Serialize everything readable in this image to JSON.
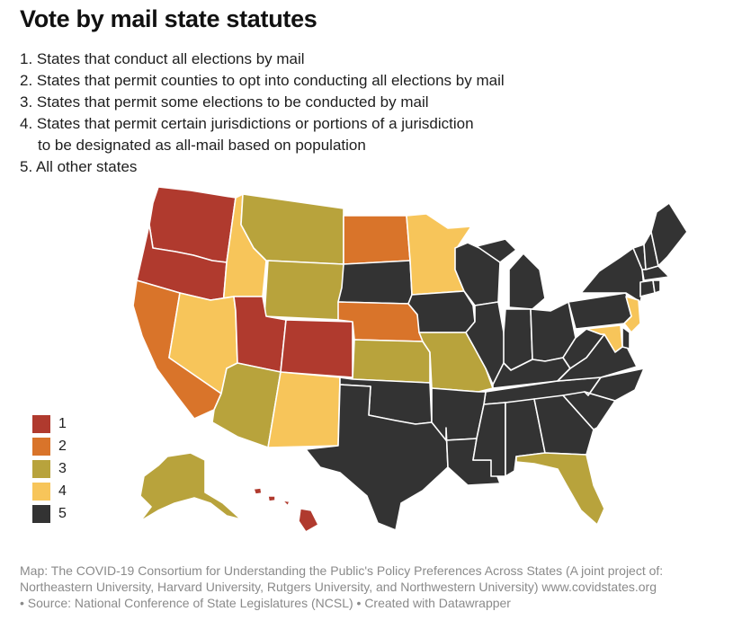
{
  "title": "Vote by mail state statutes",
  "intro": [
    "1. States that conduct all elections by mail",
    "2. States that permit counties to opt into conducting all elections by mail",
    "3. States that permit some elections to be conducted by mail",
    "4. States that permit certain jurisdictions or portions of a jurisdiction",
    "to be designated as all-mail based on population",
    "5. All other states"
  ],
  "legend": [
    {
      "label": "1",
      "color": "#b03a2e"
    },
    {
      "label": "2",
      "color": "#d9742a"
    },
    {
      "label": "3",
      "color": "#b8a33c"
    },
    {
      "label": "4",
      "color": "#f7c55a"
    },
    {
      "label": "5",
      "color": "#333333"
    }
  ],
  "states": {
    "WA": 1,
    "OR": 1,
    "UT": 1,
    "CO": 1,
    "HI": 1,
    "CA": 2,
    "ND": 2,
    "NE": 2,
    "MT": 3,
    "WY": 3,
    "AZ": 3,
    "KS": 3,
    "MO": 3,
    "AK": 3,
    "FL": 3,
    "ID": 4,
    "NV": 4,
    "NM": 4,
    "MN": 4,
    "NJ": 4,
    "MD": 4,
    "SD": 5,
    "OK": 5,
    "TX": 5,
    "IA": 5,
    "AR": 5,
    "LA": 5,
    "WI": 5,
    "IL": 5,
    "MI": 5,
    "IN": 5,
    "OH": 5,
    "KY": 5,
    "TN": 5,
    "MS": 5,
    "AL": 5,
    "GA": 5,
    "SC": 5,
    "NC": 5,
    "VA": 5,
    "WV": 5,
    "PA": 5,
    "NY": 5,
    "VT": 5,
    "NH": 5,
    "ME": 5,
    "MA": 5,
    "CT": 5,
    "RI": 5,
    "DE": 5
  },
  "notes": [
    "Map: The COVID-19 Consortium for Understanding the Public's Policy Preferences Across States (A joint project of:",
    "Northeastern University, Harvard University, Rutgers University, and Northwestern University) www.covidstates.org",
    "• Source: National Conference of State Legislatures (NCSL) • Created with Datawrapper"
  ]
}
